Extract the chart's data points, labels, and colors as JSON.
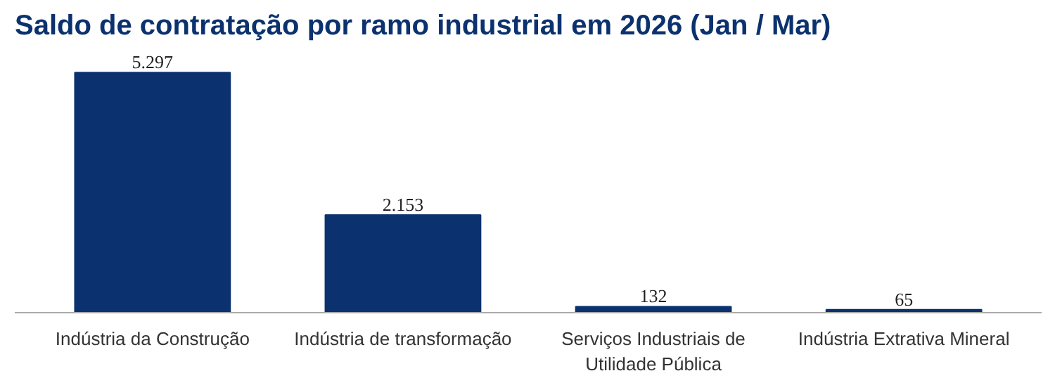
{
  "chart_data": {
    "type": "bar",
    "title": "Saldo de contratação por ramo industrial em 2026 (Jan / Mar)",
    "categories": [
      "Indústria da Construção",
      "Indústria de transformação",
      "Serviços Industriais de Utilidade Pública",
      "Indústria Extrativa Mineral"
    ],
    "values": [
      5297,
      2153,
      132,
      65
    ],
    "value_labels": [
      "5.297",
      "2.153",
      "132",
      "65"
    ],
    "color": "#0b326e",
    "grid": false
  }
}
